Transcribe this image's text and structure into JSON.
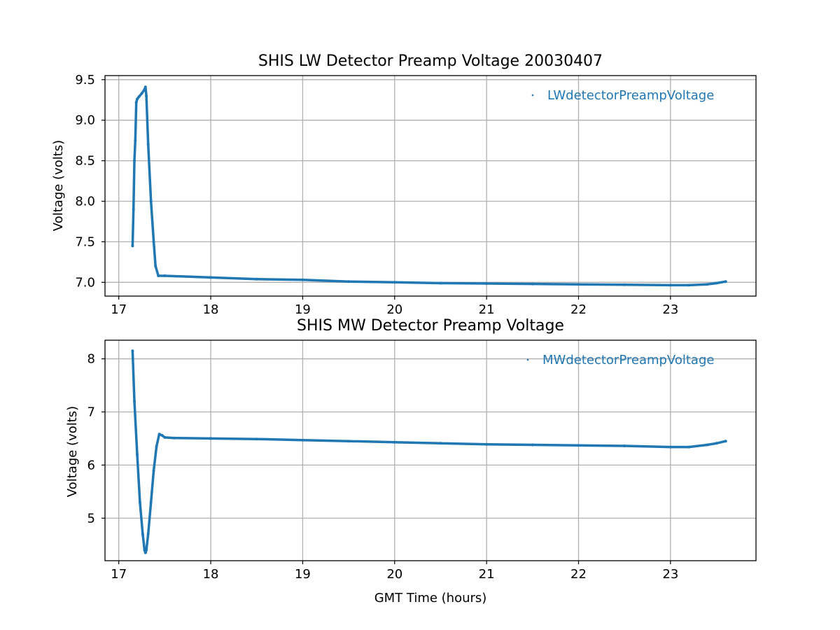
{
  "chart_data": [
    {
      "type": "scatter",
      "title": "SHIS LW Detector Preamp Voltage 20030407",
      "xlabel": "",
      "ylabel": "Voltage (volts)",
      "xlim": [
        16.85,
        23.93
      ],
      "ylim": [
        6.83,
        9.55
      ],
      "x_ticks": [
        17,
        18,
        19,
        20,
        21,
        22,
        23
      ],
      "y_ticks": [
        7.0,
        7.5,
        8.0,
        8.5,
        9.0,
        9.5
      ],
      "y_tick_labels": [
        "7.0",
        "7.5",
        "8.0",
        "8.5",
        "9.0",
        "9.5"
      ],
      "grid": true,
      "legend_position": "top-right",
      "series": [
        {
          "name": "LWdetectorPreampVoltage",
          "color": "#1f77b4",
          "x": [
            17.15,
            17.16,
            17.17,
            17.18,
            17.19,
            17.2,
            17.22,
            17.25,
            17.28,
            17.29,
            17.3,
            17.32,
            17.35,
            17.38,
            17.4,
            17.43,
            17.5,
            18.0,
            18.5,
            19.0,
            19.5,
            20.0,
            20.5,
            21.0,
            21.5,
            22.0,
            22.5,
            23.0,
            23.2,
            23.4,
            23.5,
            23.6
          ],
          "y": [
            7.45,
            7.9,
            8.5,
            8.75,
            9.22,
            9.26,
            9.29,
            9.33,
            9.38,
            9.41,
            9.3,
            8.7,
            8.0,
            7.5,
            7.2,
            7.08,
            7.08,
            7.06,
            7.04,
            7.03,
            7.01,
            7.0,
            6.99,
            6.985,
            6.98,
            6.975,
            6.97,
            6.965,
            6.965,
            6.975,
            6.99,
            7.01
          ]
        }
      ]
    },
    {
      "type": "scatter",
      "title": "SHIS MW Detector Preamp Voltage",
      "xlabel": "GMT Time (hours)",
      "ylabel": "Voltage (volts)",
      "xlim": [
        16.85,
        23.93
      ],
      "ylim": [
        4.2,
        8.35
      ],
      "x_ticks": [
        17,
        18,
        19,
        20,
        21,
        22,
        23
      ],
      "y_ticks": [
        5,
        6,
        7,
        8
      ],
      "y_tick_labels": [
        "5",
        "6",
        "7",
        "8"
      ],
      "grid": true,
      "legend_position": "top-right",
      "series": [
        {
          "name": "MWdetectorPreampVoltage",
          "color": "#1f77b4",
          "x": [
            17.15,
            17.17,
            17.2,
            17.23,
            17.26,
            17.28,
            17.29,
            17.3,
            17.32,
            17.35,
            17.38,
            17.41,
            17.44,
            17.47,
            17.5,
            17.6,
            18.0,
            18.5,
            19.0,
            19.5,
            20.0,
            20.5,
            21.0,
            21.5,
            22.0,
            22.5,
            23.0,
            23.2,
            23.4,
            23.5,
            23.6
          ],
          "y": [
            8.15,
            7.2,
            6.2,
            5.3,
            4.7,
            4.4,
            4.35,
            4.4,
            4.7,
            5.3,
            5.9,
            6.35,
            6.58,
            6.56,
            6.52,
            6.51,
            6.5,
            6.49,
            6.47,
            6.45,
            6.43,
            6.41,
            6.39,
            6.38,
            6.37,
            6.36,
            6.34,
            6.34,
            6.38,
            6.41,
            6.45
          ]
        }
      ]
    }
  ]
}
